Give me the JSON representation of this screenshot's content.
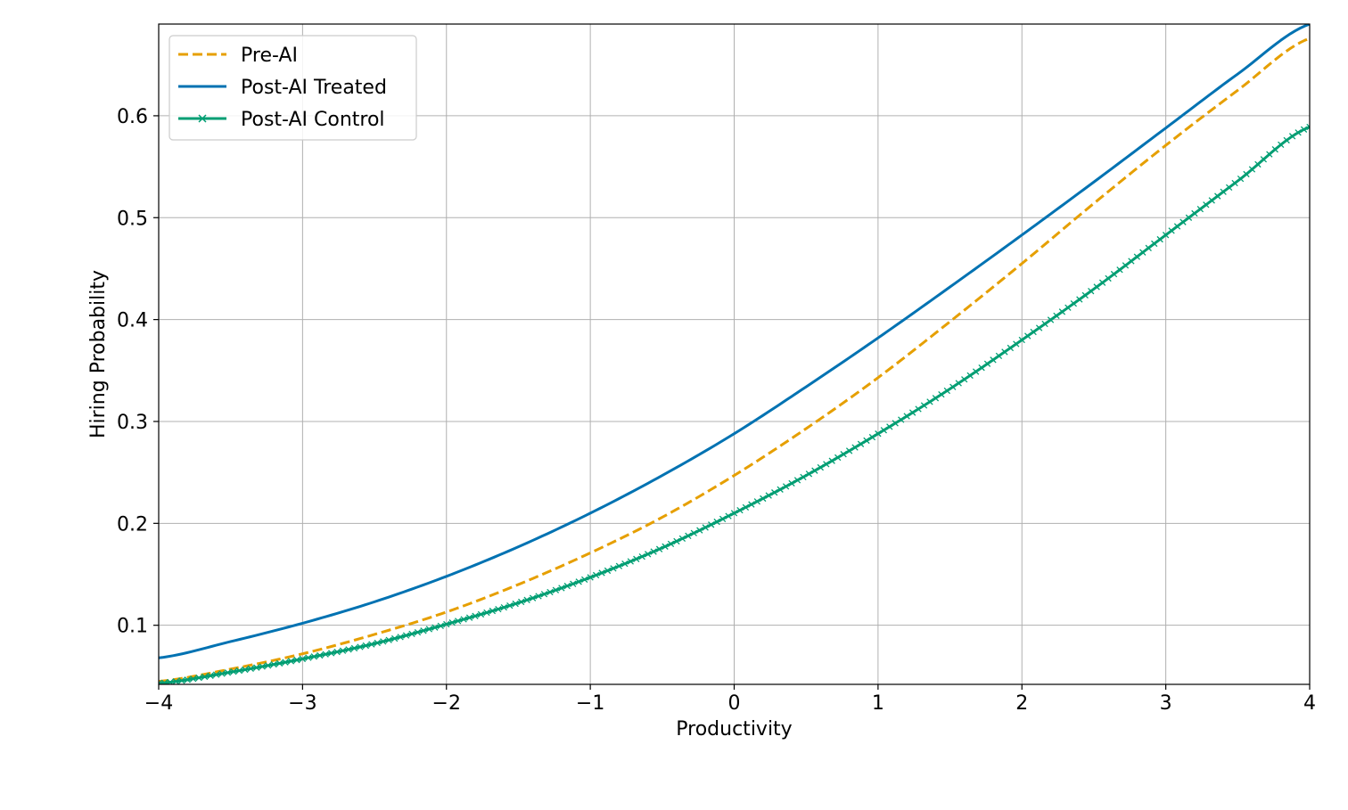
{
  "chart_data": {
    "type": "line",
    "title": "",
    "xlabel": "Productivity",
    "ylabel": "Hiring Probability",
    "xlim": [
      -4,
      4
    ],
    "ylim": [
      0.042,
      0.69
    ],
    "xticks": [
      -4,
      -3,
      -2,
      -1,
      0,
      1,
      2,
      3,
      4
    ],
    "xtick_labels": [
      "−4",
      "−3",
      "−2",
      "−1",
      "0",
      "1",
      "2",
      "3",
      "4"
    ],
    "yticks": [
      0.1,
      0.2,
      0.3,
      0.4,
      0.5,
      0.6
    ],
    "ytick_labels": [
      "0.1",
      "0.2",
      "0.3",
      "0.4",
      "0.5",
      "0.6"
    ],
    "grid": true,
    "legend_position": "top-left",
    "x": [
      -4,
      -3.5,
      -3,
      -2.5,
      -2,
      -1.5,
      -1,
      -0.5,
      0,
      0.5,
      1,
      1.5,
      2,
      2.5,
      3,
      3.5,
      4
    ],
    "series": [
      {
        "name": "Pre-AI",
        "style": "dashed",
        "color": "#E69F00",
        "values": [
          0.045,
          0.057,
          0.072,
          0.091,
          0.113,
          0.14,
          0.171,
          0.206,
          0.247,
          0.293,
          0.343,
          0.398,
          0.455,
          0.514,
          0.571,
          0.625,
          0.676
        ]
      },
      {
        "name": "Post-AI Treated",
        "style": "solid",
        "color": "#0072B2",
        "values": [
          0.068,
          0.084,
          0.102,
          0.123,
          0.148,
          0.177,
          0.21,
          0.247,
          0.288,
          0.334,
          0.382,
          0.432,
          0.483,
          0.535,
          0.588,
          0.641,
          0.69
        ]
      },
      {
        "name": "Post-AI Control",
        "style": "solid-x-markers",
        "color": "#009E73",
        "values": [
          0.043,
          0.054,
          0.067,
          0.082,
          0.101,
          0.122,
          0.147,
          0.176,
          0.21,
          0.247,
          0.288,
          0.332,
          0.38,
          0.43,
          0.483,
          0.536,
          0.589
        ]
      }
    ]
  }
}
